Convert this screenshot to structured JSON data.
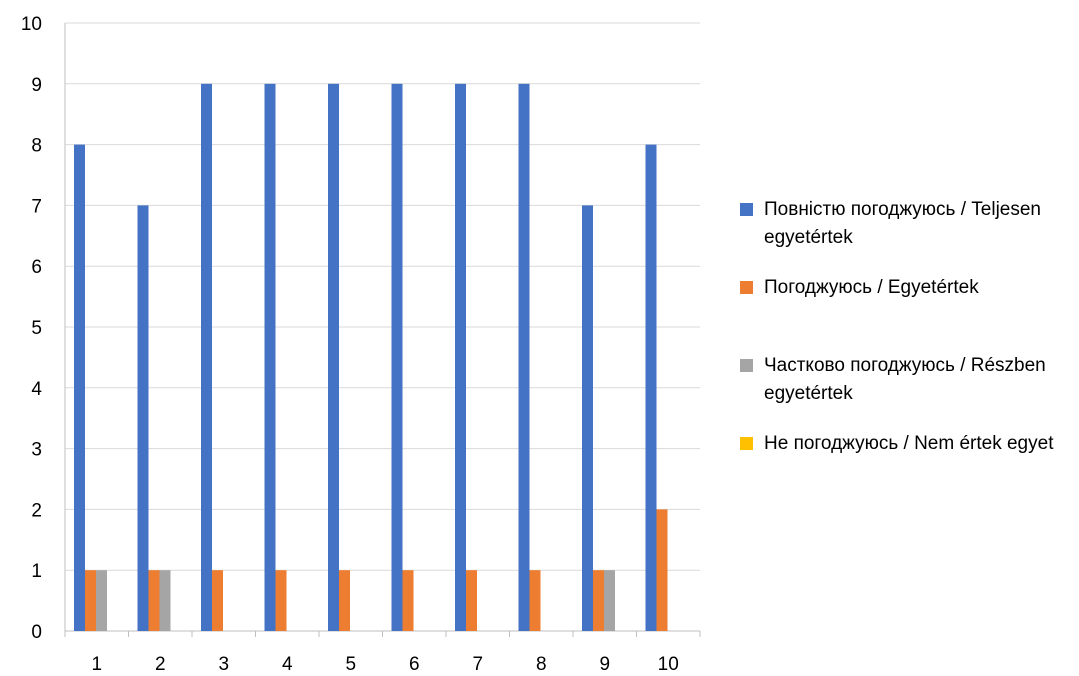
{
  "chart_data": {
    "type": "bar",
    "categories": [
      "1",
      "2",
      "3",
      "4",
      "5",
      "6",
      "7",
      "8",
      "9",
      "10"
    ],
    "series": [
      {
        "name": "Повністю погоджуюсь / Teljesen egyetértek",
        "color": "#4472C4",
        "values": [
          8,
          7,
          9,
          9,
          9,
          9,
          9,
          9,
          7,
          8
        ]
      },
      {
        "name": "Погоджуюсь / Egyetértek",
        "color": "#ED7D31",
        "values": [
          1,
          1,
          1,
          1,
          1,
          1,
          1,
          1,
          1,
          2
        ]
      },
      {
        "name": "Частково погоджуюсь / Részben egyetértek",
        "color": "#A5A5A5",
        "values": [
          1,
          1,
          0,
          0,
          0,
          0,
          0,
          0,
          1,
          0
        ]
      },
      {
        "name": "Не погоджуюсь / Nem értek egyet",
        "color": "#FFC000",
        "values": [
          0,
          0,
          0,
          0,
          0,
          0,
          0,
          0,
          0,
          0
        ]
      }
    ],
    "ylim": [
      0,
      10
    ],
    "yticks": [
      "0",
      "1",
      "2",
      "3",
      "4",
      "5",
      "6",
      "7",
      "8",
      "9",
      "10"
    ],
    "grid": true,
    "legend_position": "right"
  }
}
